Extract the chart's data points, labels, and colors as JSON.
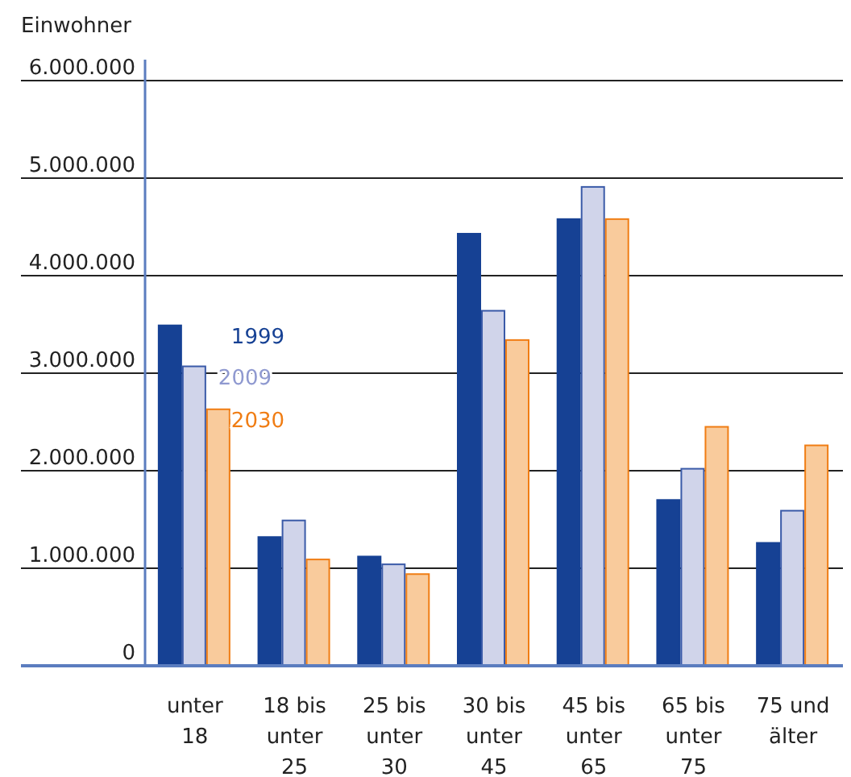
{
  "chart_data": {
    "type": "bar",
    "ylabel": "Einwohner",
    "categories": [
      "unter\n18",
      "18 bis\nunter\n25",
      "25 bis\nunter\n30",
      "30 bis\nunter\n45",
      "45 bis\nunter\n65",
      "65 bis\nunter\n75",
      "75 und\nälter"
    ],
    "series": [
      {
        "name": "1999",
        "color": "#164194",
        "values": [
          3490000,
          1320000,
          1120000,
          4430000,
          4580000,
          1700000,
          1260000
        ]
      },
      {
        "name": "2009",
        "color": "#d0d4ea",
        "values": [
          3070000,
          1490000,
          1040000,
          3640000,
          4910000,
          2020000,
          1590000
        ]
      },
      {
        "name": "2030",
        "color": "#f9cb9c",
        "values": [
          2630000,
          1090000,
          940000,
          3340000,
          4580000,
          2450000,
          2260000
        ]
      }
    ],
    "ylim": [
      0,
      6000000
    ],
    "yticks": [
      {
        "value": 0,
        "label": "0"
      },
      {
        "value": 1000000,
        "label": "1.000.000"
      },
      {
        "value": 2000000,
        "label": "2.000.000"
      },
      {
        "value": 3000000,
        "label": "3.000.000"
      },
      {
        "value": 4000000,
        "label": "4.000.000"
      },
      {
        "value": 5000000,
        "label": "5.000.000"
      },
      {
        "value": 6000000,
        "label": "6.000.000"
      }
    ],
    "grid": "y"
  }
}
